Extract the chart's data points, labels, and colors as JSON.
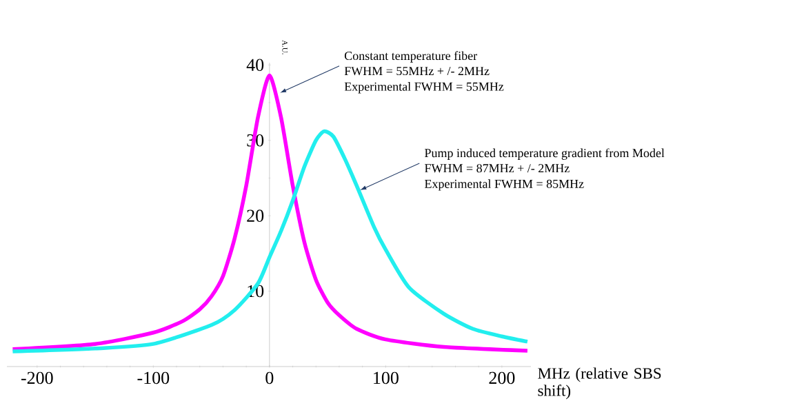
{
  "chart_data": {
    "type": "line",
    "ylabel": "A.U.",
    "xlabel": "MHz (relative  SBS shift)",
    "xlim": [
      -226,
      225
    ],
    "ylim": [
      0,
      40.3
    ],
    "xticks": [
      -200,
      -100,
      0,
      100,
      200
    ],
    "yticks": [
      10,
      20,
      30,
      40
    ],
    "series": [
      {
        "color": "#ff00ff",
        "x": [
          -221,
          -150,
          -100,
          -75,
          -60,
          -50,
          -40,
          -30,
          -20,
          -10,
          0,
          10,
          20,
          30,
          40,
          50,
          60,
          75,
          100,
          150,
          222
        ],
        "values": [
          2.3,
          3.0,
          4.5,
          6.0,
          7.6,
          9.3,
          12,
          17,
          24,
          33,
          38.6,
          33,
          24,
          16.5,
          11.5,
          8.5,
          6.8,
          5.0,
          3.6,
          2.6,
          2.1
        ]
      },
      {
        "color": "#22eeee",
        "x": [
          -221,
          -150,
          -100,
          -50,
          -30,
          -10,
          0,
          10,
          20,
          30,
          40,
          47,
          55,
          65,
          75,
          90,
          100,
          120,
          150,
          175,
          200,
          222
        ],
        "values": [
          2.0,
          2.4,
          3.0,
          5.5,
          7.5,
          11,
          14.5,
          18,
          22,
          26.5,
          30,
          31.2,
          30.5,
          27.5,
          24,
          18.5,
          15.5,
          10.5,
          7.0,
          5.0,
          4.0,
          3.3
        ]
      }
    ],
    "annotations": [
      {
        "text": "Constant temperature fiber",
        "x": 9,
        "y": 36.3
      },
      "FWHM = 55MHz + /- 2MHz",
      "Experimental FWHM = 55MHz",
      {
        "text": "Pump induced temperature gradient from Model",
        "x": 78,
        "y": 23.4
      },
      "FWHM = 87MHz + /- 2MHz",
      "Experimental FWHM = 85MHz"
    ]
  }
}
